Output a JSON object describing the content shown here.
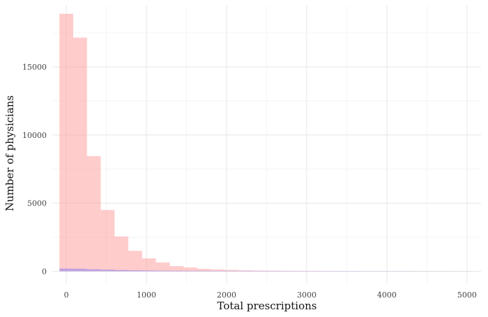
{
  "chart_data": {
    "type": "bar",
    "subtype": "overlaid-histogram",
    "xlabel": "Total prescriptions",
    "ylabel": "Number of physicians",
    "xlim": [
      -175,
      5175
    ],
    "ylim": [
      -900,
      19500
    ],
    "x_ticks": [
      0,
      1000,
      2000,
      3000,
      4000,
      5000
    ],
    "x_tick_labels": [
      "0",
      "1000",
      "2000",
      "3000",
      "4000",
      "5000"
    ],
    "y_ticks": [
      0,
      5000,
      10000,
      15000
    ],
    "y_tick_labels": [
      "0",
      "5000",
      "10000",
      "15000"
    ],
    "grid": true,
    "bin_width": 172,
    "bin_centers": [
      0,
      172,
      344,
      516,
      688,
      860,
      1032,
      1204,
      1376,
      1548,
      1720,
      1892,
      2064,
      2236,
      2408,
      2580,
      2752,
      2924,
      3096,
      3268,
      3440,
      3612,
      3784,
      3956,
      4128,
      4300,
      4472,
      4644,
      4816,
      4988
    ],
    "series": [
      {
        "color": "#ff9999",
        "opacity": 0.5,
        "values": [
          18900,
          17150,
          8450,
          4500,
          2550,
          1500,
          950,
          650,
          380,
          280,
          180,
          130,
          100,
          70,
          55,
          45,
          35,
          30,
          25,
          20,
          18,
          15,
          12,
          10,
          9,
          8,
          6,
          6,
          5,
          4
        ]
      },
      {
        "color": "#8a7ff0",
        "opacity": 0.55,
        "values": [
          200,
          190,
          150,
          120,
          95,
          75,
          60,
          50,
          45,
          40,
          35,
          32,
          30,
          28,
          26,
          24,
          22,
          20,
          18,
          17,
          16,
          15,
          14,
          13,
          12,
          11,
          10,
          10,
          9,
          8
        ]
      }
    ]
  }
}
